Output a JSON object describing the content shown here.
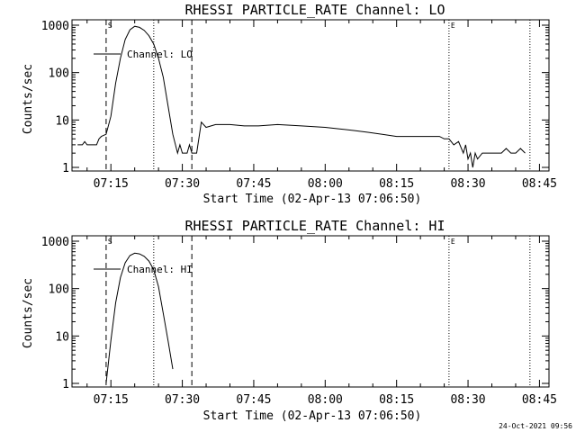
{
  "footer": {
    "timestamp": "24-Oct-2021 09:56"
  },
  "chart_data": [
    {
      "type": "line",
      "title": "RHESSI PARTICLE_RATE Channel: LO",
      "xlabel": "Start Time (02-Apr-13 07:06:50)",
      "ylabel": "Counts/sec",
      "y_scale": "log",
      "ylim": [
        1,
        1000
      ],
      "y_ticks": [
        "1",
        "10",
        "100",
        "1000"
      ],
      "xlim": [
        "07:06:50",
        "08:47:00"
      ],
      "x_ticks": [
        "07:15",
        "07:30",
        "07:45",
        "08:00",
        "08:15",
        "08:30",
        "08:45"
      ],
      "legend": {
        "label": "Channel: LO",
        "position": "top-left"
      },
      "markers": [
        {
          "label": "S",
          "x": "07:14:00",
          "style": "dashed"
        },
        {
          "label": "",
          "x": "07:24:00",
          "style": "dotted"
        },
        {
          "label": "",
          "x": "07:32:00",
          "style": "dashed"
        },
        {
          "label": "E",
          "x": "08:26:00",
          "style": "dotted"
        },
        {
          "label": "",
          "x": "08:43:00",
          "style": "dotted"
        }
      ],
      "series": [
        {
          "name": "Channel: LO",
          "points": [
            [
              "07:08:00",
              3
            ],
            [
              "07:09:00",
              3
            ],
            [
              "07:09:30",
              3.5
            ],
            [
              "07:10:00",
              3
            ],
            [
              "07:11:00",
              3
            ],
            [
              "07:12:00",
              3
            ],
            [
              "07:12:30",
              4
            ],
            [
              "07:13:00",
              4.5
            ],
            [
              "07:14:00",
              5
            ],
            [
              "07:15:00",
              12
            ],
            [
              "07:16:00",
              60
            ],
            [
              "07:17:00",
              200
            ],
            [
              "07:18:00",
              500
            ],
            [
              "07:19:00",
              800
            ],
            [
              "07:20:00",
              950
            ],
            [
              "07:21:00",
              900
            ],
            [
              "07:22:00",
              780
            ],
            [
              "07:23:00",
              600
            ],
            [
              "07:24:00",
              400
            ],
            [
              "07:25:00",
              200
            ],
            [
              "07:26:00",
              80
            ],
            [
              "07:27:00",
              20
            ],
            [
              "07:28:00",
              5
            ],
            [
              "07:29:00",
              2
            ],
            [
              "07:29:30",
              3
            ],
            [
              "07:30:00",
              2
            ],
            [
              "07:31:00",
              2
            ],
            [
              "07:31:30",
              3
            ],
            [
              "07:32:00",
              2
            ],
            [
              "07:32:30",
              2
            ],
            [
              "07:33:00",
              2
            ],
            [
              "07:34:00",
              9
            ],
            [
              "07:35:00",
              7
            ],
            [
              "07:37:00",
              8
            ],
            [
              "07:40:00",
              8
            ],
            [
              "07:43:00",
              7.5
            ],
            [
              "07:46:00",
              7.5
            ],
            [
              "07:50:00",
              8
            ],
            [
              "07:55:00",
              7.5
            ],
            [
              "08:00:00",
              7
            ],
            [
              "08:03:00",
              6.5
            ],
            [
              "08:06:00",
              6
            ],
            [
              "08:09:00",
              5.5
            ],
            [
              "08:12:00",
              5
            ],
            [
              "08:15:00",
              4.5
            ],
            [
              "08:18:00",
              4.5
            ],
            [
              "08:21:00",
              4.5
            ],
            [
              "08:24:00",
              4.5
            ],
            [
              "08:25:00",
              4
            ],
            [
              "08:26:00",
              4
            ],
            [
              "08:27:00",
              3
            ],
            [
              "08:28:00",
              3.5
            ],
            [
              "08:29:00",
              2
            ],
            [
              "08:29:30",
              3
            ],
            [
              "08:30:00",
              1.5
            ],
            [
              "08:30:30",
              2
            ],
            [
              "08:31:00",
              1
            ],
            [
              "08:31:30",
              2
            ],
            [
              "08:32:00",
              1.5
            ],
            [
              "08:33:00",
              2
            ],
            [
              "08:35:00",
              2
            ],
            [
              "08:37:00",
              2
            ],
            [
              "08:38:00",
              2.5
            ],
            [
              "08:39:00",
              2
            ],
            [
              "08:40:00",
              2
            ],
            [
              "08:41:00",
              2.5
            ],
            [
              "08:42:00",
              2
            ]
          ]
        }
      ]
    },
    {
      "type": "line",
      "title": "RHESSI PARTICLE_RATE Channel: HI",
      "xlabel": "Start Time (02-Apr-13 07:06:50)",
      "ylabel": "Counts/sec",
      "y_scale": "log",
      "ylim": [
        1,
        1000
      ],
      "y_ticks": [
        "1",
        "10",
        "100",
        "1000"
      ],
      "xlim": [
        "07:06:50",
        "08:47:00"
      ],
      "x_ticks": [
        "07:15",
        "07:30",
        "07:45",
        "08:00",
        "08:15",
        "08:30",
        "08:45"
      ],
      "legend": {
        "label": "Channel: HI",
        "position": "top-left"
      },
      "markers": [
        {
          "label": "S",
          "x": "07:14:00",
          "style": "dashed"
        },
        {
          "label": "",
          "x": "07:24:00",
          "style": "dotted"
        },
        {
          "label": "",
          "x": "07:32:00",
          "style": "dashed"
        },
        {
          "label": "E",
          "x": "08:26:00",
          "style": "dotted"
        },
        {
          "label": "",
          "x": "08:43:00",
          "style": "dotted"
        }
      ],
      "series": [
        {
          "name": "Channel: HI",
          "points": [
            [
              "07:14:00",
              1
            ],
            [
              "07:15:00",
              8
            ],
            [
              "07:16:00",
              50
            ],
            [
              "07:17:00",
              170
            ],
            [
              "07:18:00",
              350
            ],
            [
              "07:19:00",
              500
            ],
            [
              "07:20:00",
              560
            ],
            [
              "07:21:00",
              540
            ],
            [
              "07:22:00",
              480
            ],
            [
              "07:23:00",
              380
            ],
            [
              "07:24:00",
              250
            ],
            [
              "07:25:00",
              110
            ],
            [
              "07:26:00",
              30
            ],
            [
              "07:27:00",
              8
            ],
            [
              "07:28:00",
              2
            ]
          ]
        }
      ]
    }
  ]
}
